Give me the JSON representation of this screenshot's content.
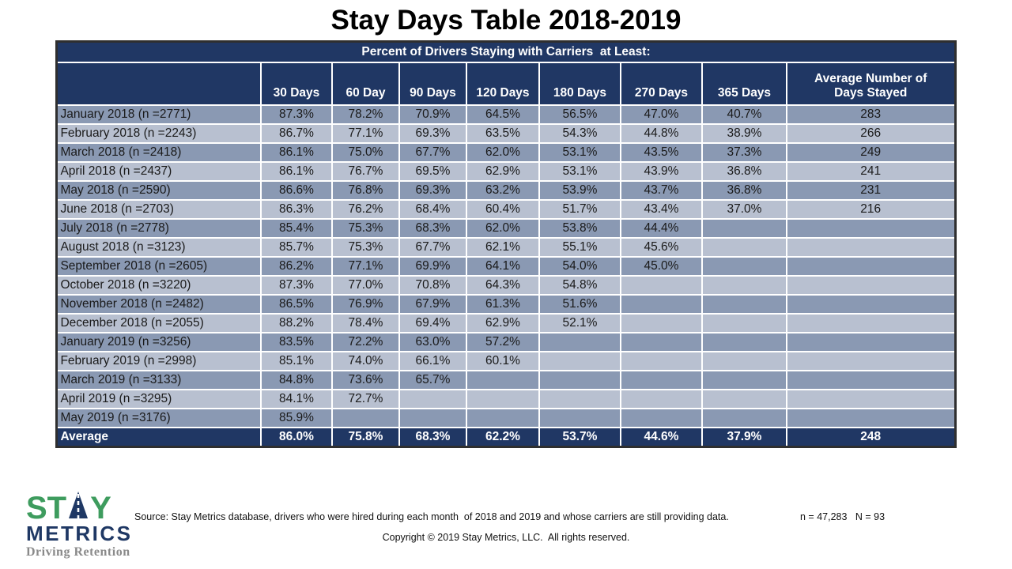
{
  "title": "Stay Days Table 2018-2019",
  "chart_data": {
    "type": "table",
    "title": "Stay Days Table 2018-2019",
    "merged_header": "Percent of Drivers Staying with Carriers  at Least:",
    "columns": [
      "",
      "30 Days",
      "60 Day",
      "90 Days",
      "120 Days",
      "180 Days",
      "270 Days",
      "365 Days",
      "Average Number of Days Stayed"
    ],
    "rows": [
      [
        "January 2018 (n =2771)",
        "87.3%",
        "78.2%",
        "70.9%",
        "64.5%",
        "56.5%",
        "47.0%",
        "40.7%",
        "283"
      ],
      [
        "February 2018 (n =2243)",
        "86.7%",
        "77.1%",
        "69.3%",
        "63.5%",
        "54.3%",
        "44.8%",
        "38.9%",
        "266"
      ],
      [
        "March 2018 (n =2418)",
        "86.1%",
        "75.0%",
        "67.7%",
        "62.0%",
        "53.1%",
        "43.5%",
        "37.3%",
        "249"
      ],
      [
        "April 2018 (n =2437)",
        "86.1%",
        "76.7%",
        "69.5%",
        "62.9%",
        "53.1%",
        "43.9%",
        "36.8%",
        "241"
      ],
      [
        "May 2018 (n =2590)",
        "86.6%",
        "76.8%",
        "69.3%",
        "63.2%",
        "53.9%",
        "43.7%",
        "36.8%",
        "231"
      ],
      [
        "June 2018 (n =2703)",
        "86.3%",
        "76.2%",
        "68.4%",
        "60.4%",
        "51.7%",
        "43.4%",
        "37.0%",
        "216"
      ],
      [
        "July 2018 (n =2778)",
        "85.4%",
        "75.3%",
        "68.3%",
        "62.0%",
        "53.8%",
        "44.4%",
        "",
        ""
      ],
      [
        "August 2018 (n =3123)",
        "85.7%",
        "75.3%",
        "67.7%",
        "62.1%",
        "55.1%",
        "45.6%",
        "",
        ""
      ],
      [
        "September 2018 (n =2605)",
        "86.2%",
        "77.1%",
        "69.9%",
        "64.1%",
        "54.0%",
        "45.0%",
        "",
        ""
      ],
      [
        "October 2018 (n =3220)",
        "87.3%",
        "77.0%",
        "70.8%",
        "64.3%",
        "54.8%",
        "",
        "",
        ""
      ],
      [
        "November 2018 (n =2482)",
        "86.5%",
        "76.9%",
        "67.9%",
        "61.3%",
        "51.6%",
        "",
        "",
        ""
      ],
      [
        "December 2018 (n =2055)",
        "88.2%",
        "78.4%",
        "69.4%",
        "62.9%",
        "52.1%",
        "",
        "",
        ""
      ],
      [
        "January 2019 (n =3256)",
        "83.5%",
        "72.2%",
        "63.0%",
        "57.2%",
        "",
        "",
        "",
        ""
      ],
      [
        "February 2019 (n =2998)",
        "85.1%",
        "74.0%",
        "66.1%",
        "60.1%",
        "",
        "",
        "",
        ""
      ],
      [
        "March 2019 (n =3133)",
        "84.8%",
        "73.6%",
        "65.7%",
        "",
        "",
        "",
        "",
        ""
      ],
      [
        "April 2019 (n =3295)",
        "84.1%",
        "72.7%",
        "",
        "",
        "",
        "",
        "",
        ""
      ],
      [
        "May 2019 (n =3176)",
        "85.9%",
        "",
        "",
        "",
        "",
        "",
        "",
        ""
      ]
    ],
    "average_row": [
      "Average",
      "86.0%",
      "75.8%",
      "68.3%",
      "62.2%",
      "53.7%",
      "44.6%",
      "37.9%",
      "248"
    ]
  },
  "logo": {
    "word_top_left": "ST",
    "word_top_right": "Y",
    "word_bottom": "METRICS",
    "tagline": "Driving Retention"
  },
  "footer": {
    "source": "Source: Stay Metrics database, drivers who were hired during each month  of 2018 and 2019 and whose carriers are still providing data.",
    "sample": "n = 47,283   N = 93",
    "copyright": "Copyright © 2019 Stay Metrics, LLC.  All rights reserved."
  },
  "colors": {
    "header_navy": "#203764",
    "row_dark": "#8A99B3",
    "row_light": "#B8C0D0",
    "logo_green": "#3E9C5E",
    "logo_navy": "#1F3864",
    "tagline_gray": "#8A8A8A"
  }
}
